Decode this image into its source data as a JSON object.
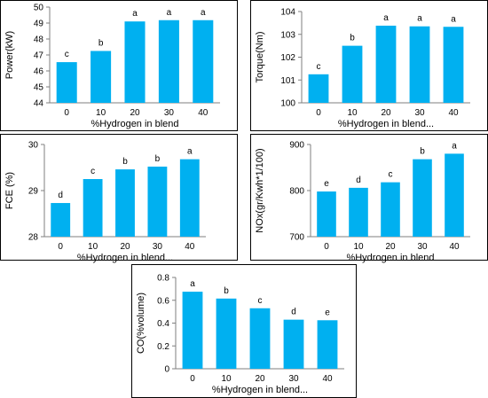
{
  "colors": {
    "bar": "#00B0F0",
    "axis": "#7f7f7f",
    "frame": "#000000",
    "text": "#000000"
  },
  "chart_data": [
    {
      "type": "bar",
      "title": "",
      "xlabel": "%Hydrogen in blend",
      "ylabel": "Power(kW)",
      "categories": [
        "0",
        "10",
        "20",
        "30",
        "40"
      ],
      "values": [
        46.55,
        47.25,
        49.1,
        49.18,
        49.18
      ],
      "labels": [
        "c",
        "b",
        "a",
        "a",
        "a"
      ],
      "ylim": [
        44,
        50
      ],
      "yticks": [
        "44",
        "45",
        "46",
        "47",
        "48",
        "49",
        "50"
      ],
      "grid": false,
      "legend": "none"
    },
    {
      "type": "bar",
      "title": "",
      "xlabel": "%Hydrogen in blend...",
      "ylabel": "Torque(Nm)",
      "categories": [
        "0",
        "10",
        "20",
        "30",
        "40"
      ],
      "values": [
        101.25,
        102.5,
        103.38,
        103.35,
        103.33
      ],
      "labels": [
        "c",
        "b",
        "a",
        "a",
        "a"
      ],
      "ylim": [
        100,
        104
      ],
      "yticks": [
        "100",
        "101",
        "102",
        "103",
        "104"
      ],
      "grid": false,
      "legend": "none"
    },
    {
      "type": "bar",
      "title": "",
      "xlabel": "%Hydrogen in blend...",
      "ylabel": "FCE (%)",
      "categories": [
        "0",
        "10",
        "20",
        "30",
        "40"
      ],
      "values": [
        28.73,
        29.25,
        29.46,
        29.52,
        29.68
      ],
      "labels": [
        "d",
        "c",
        "b",
        "b",
        "a"
      ],
      "ylim": [
        28,
        30
      ],
      "yticks": [
        "28",
        "29",
        "30"
      ],
      "grid": false,
      "legend": "none"
    },
    {
      "type": "bar",
      "title": "",
      "xlabel": "%Hydrogen in blend",
      "ylabel": "NOx(gr/Kwh*1/100)",
      "categories": [
        "0",
        "10",
        "20",
        "30",
        "40"
      ],
      "values": [
        798,
        806,
        818,
        868,
        880
      ],
      "labels": [
        "e",
        "d",
        "c",
        "b",
        "a"
      ],
      "ylim": [
        700,
        900
      ],
      "yticks": [
        "700",
        "800",
        "900"
      ],
      "grid": false,
      "legend": "none"
    },
    {
      "type": "bar",
      "title": "",
      "xlabel": "%Hydrogen in blend...",
      "ylabel": "CO(%volume)",
      "categories": [
        "0",
        "10",
        "20",
        "30",
        "40"
      ],
      "values": [
        0.675,
        0.615,
        0.53,
        0.43,
        0.425
      ],
      "labels": [
        "a",
        "b",
        "c",
        "d",
        "e"
      ],
      "ylim": [
        0,
        0.8
      ],
      "yticks": [
        "0",
        "0.2",
        "0.4",
        "0.6",
        "0.8"
      ],
      "grid": false,
      "legend": "none"
    }
  ]
}
